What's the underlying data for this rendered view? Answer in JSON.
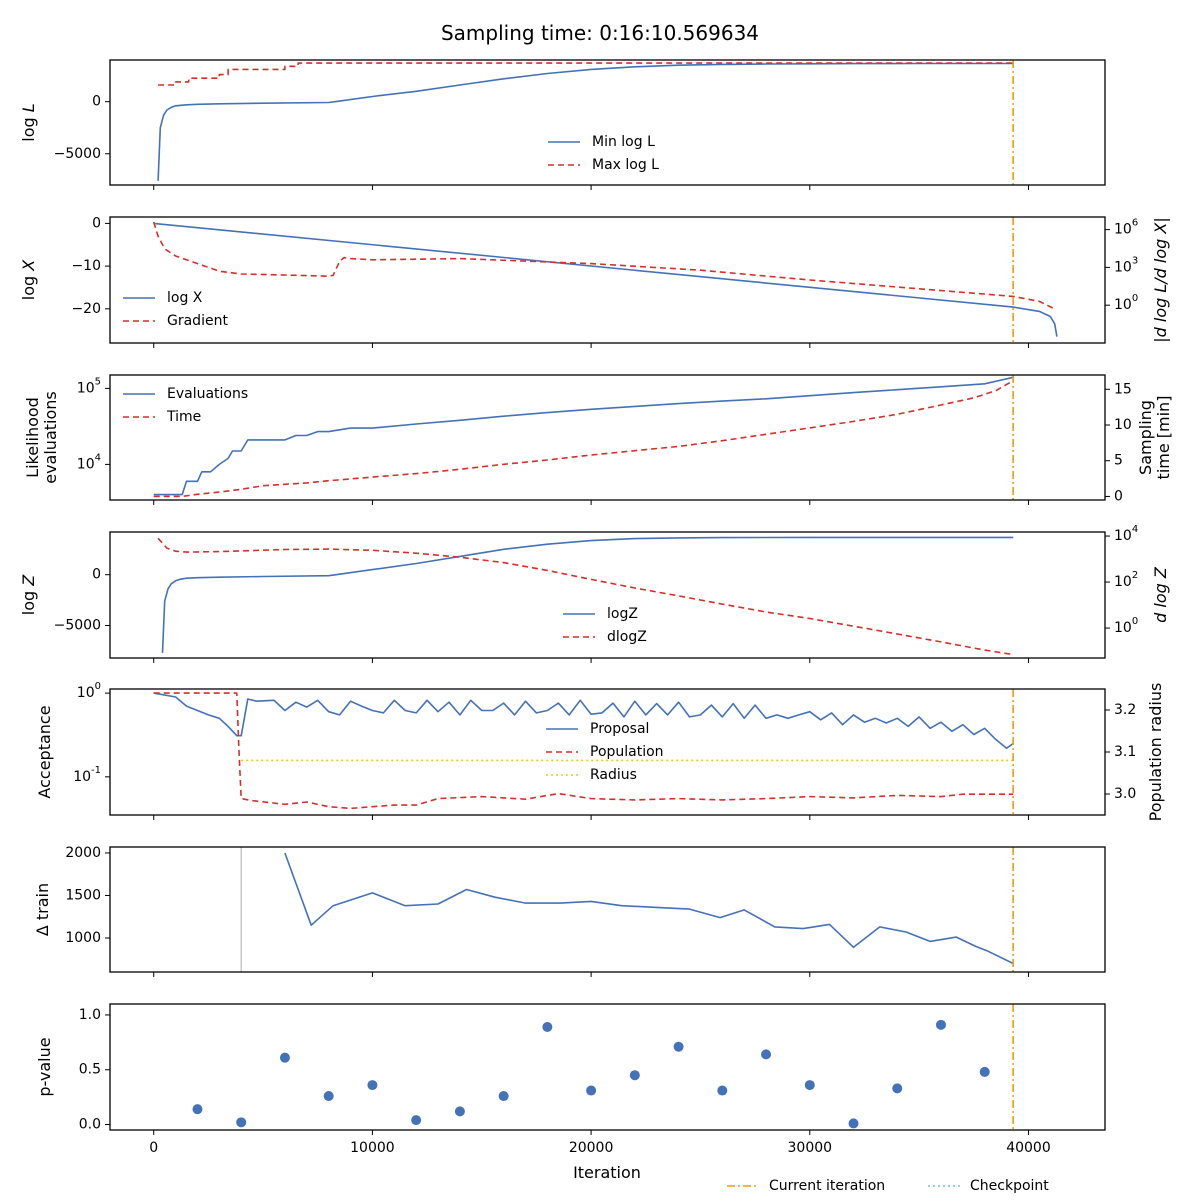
{
  "title": "Sampling time: 0:16:10.569634",
  "xlabel": "Iteration",
  "x_ticks": [
    0,
    10000,
    20000,
    30000,
    40000
  ],
  "x_tick_labels": [
    "0",
    "10000",
    "20000",
    "30000",
    "40000"
  ],
  "xlim": [
    -2000,
    43500
  ],
  "current_iteration": 39300,
  "footer_legend": [
    {
      "label": "Current iteration",
      "color": "#f29b0f",
      "style": "dashdot"
    },
    {
      "label": "Checkpoint",
      "color": "#6bc6d6",
      "style": "dotted"
    }
  ],
  "colors": {
    "blue": "#4472b8",
    "red": "#d62f2a",
    "orange": "#f29b0f",
    "gold": "#f5c518",
    "gray": "#c8c8c8"
  },
  "chart_data": [
    {
      "id": "logl",
      "type": "line",
      "ylabel": "log L",
      "ylabel_html": [
        "log ",
        "L"
      ],
      "ylim": [
        -8000,
        4000
      ],
      "yscale": "linear",
      "yticks": [
        -5000,
        0
      ],
      "ytick_labels": [
        "−5000",
        "0"
      ],
      "legend": [
        {
          "label": "Min log L",
          "series": 0
        },
        {
          "label": "Max log L",
          "series": 1
        }
      ],
      "series": [
        {
          "name": "Min log L",
          "color": "blue",
          "dash": "",
          "x": [
            200,
            300,
            450,
            600,
            800,
            1000,
            1500,
            2000,
            3000,
            5000,
            8000,
            8500,
            10000,
            12000,
            14000,
            16000,
            18000,
            20000,
            22000,
            24000,
            26000,
            28000,
            30000,
            32000,
            35000,
            39300
          ],
          "y": [
            -7600,
            -2500,
            -1300,
            -800,
            -550,
            -400,
            -300,
            -250,
            -200,
            -150,
            -80,
            50,
            500,
            1000,
            1600,
            2200,
            2700,
            3100,
            3350,
            3500,
            3580,
            3620,
            3640,
            3650,
            3660,
            3660
          ]
        },
        {
          "name": "Max log L",
          "color": "red",
          "dash": "6,4",
          "x": [
            200,
            1000,
            1000,
            1600,
            1600,
            3000,
            3000,
            3400,
            3400,
            6000,
            6000,
            6600,
            6600,
            39300
          ],
          "y": [
            1600,
            1600,
            1900,
            1900,
            2250,
            2250,
            2600,
            2600,
            3100,
            3100,
            3400,
            3400,
            3700,
            3700
          ]
        }
      ]
    },
    {
      "id": "logx",
      "type": "line",
      "ylabel": "log X",
      "ylabel_html": [
        "log ",
        "X"
      ],
      "ylim": [
        -28,
        1.5
      ],
      "yscale": "linear",
      "yticks": [
        0,
        -10,
        -20
      ],
      "ytick_labels": [
        "0",
        "−10",
        "−20"
      ],
      "y2label": "|d log L/d log X|",
      "y2lim": [
        0.001,
        10000000
      ],
      "y2scale": "log",
      "y2ticks": [
        1,
        1000,
        1000000
      ],
      "y2tick_labels": [
        "10^0",
        "10^3",
        "10^6"
      ],
      "legend": [
        {
          "label": "log X",
          "series": 0
        },
        {
          "label": "Gradient",
          "series": 1
        }
      ],
      "series": [
        {
          "name": "log X",
          "color": "blue",
          "dash": "",
          "axis": "y",
          "x": [
            0,
            39300,
            40500,
            41000,
            41200,
            41300
          ],
          "y": [
            0,
            -19.6,
            -20.6,
            -21.8,
            -23.5,
            -26.5
          ]
        },
        {
          "name": "Gradient",
          "color": "red",
          "dash": "6,4",
          "axis": "y2",
          "x": [
            0,
            200,
            500,
            1000,
            2000,
            3000,
            4000,
            6000,
            8000,
            8200,
            8500,
            8700,
            9000,
            10000,
            14000,
            20000,
            25000,
            30000,
            35000,
            39300,
            40500,
            41200
          ],
          "y": [
            4000000,
            300000,
            30000,
            8000,
            2000,
            500,
            300,
            250,
            200,
            230,
            3000,
            6000,
            5000,
            4000,
            5000,
            2000,
            600,
            100,
            20,
            5,
            2,
            0.5
          ]
        }
      ]
    },
    {
      "id": "evals",
      "type": "line",
      "ylabel": "Likelihood evaluations",
      "ylabel_lines": [
        "Likelihood",
        "evaluations"
      ],
      "ylim": [
        3400,
        150000
      ],
      "yscale": "log",
      "yticks": [
        10000,
        100000
      ],
      "ytick_labels": [
        "10^4",
        "10^5"
      ],
      "y2label": "Sampling time [min]",
      "y2label_lines": [
        "Sampling",
        "time [min]"
      ],
      "y2lim": [
        -0.5,
        17
      ],
      "y2scale": "linear",
      "y2ticks": [
        0,
        5,
        10,
        15
      ],
      "y2tick_labels": [
        "0",
        "5",
        "10",
        "15"
      ],
      "legend": [
        {
          "label": "Evaluations",
          "series": 0
        },
        {
          "label": "Time",
          "series": 1
        }
      ],
      "series": [
        {
          "name": "Evaluations",
          "color": "blue",
          "dash": "",
          "axis": "y",
          "x": [
            0,
            1300,
            1500,
            2000,
            2200,
            2600,
            3000,
            3400,
            3600,
            4000,
            4300,
            6000,
            6500,
            7000,
            7500,
            8000,
            9000,
            10000,
            12000,
            14000,
            16000,
            18000,
            20000,
            22000,
            24000,
            26000,
            28000,
            30000,
            32000,
            34000,
            36000,
            38000,
            39300
          ],
          "y": [
            4000,
            4000,
            6000,
            6000,
            8000,
            8000,
            10000,
            12000,
            15000,
            15000,
            21000,
            21000,
            24000,
            24000,
            27000,
            27000,
            30000,
            30000,
            34000,
            38000,
            43000,
            48000,
            53000,
            58000,
            63000,
            68000,
            73000,
            80000,
            88000,
            96000,
            105000,
            115000,
            140000
          ]
        },
        {
          "name": "Time",
          "color": "red",
          "dash": "6,4",
          "x": [
            0,
            1300,
            2000,
            3000,
            4000,
            5000,
            6000,
            7000,
            8000,
            10000,
            12000,
            14000,
            16000,
            18000,
            20000,
            22000,
            24000,
            26000,
            28000,
            30000,
            32000,
            34000,
            36000,
            37500,
            38500,
            39300
          ],
          "axis": "y2",
          "y": [
            0,
            0,
            0.3,
            0.6,
            1.0,
            1.5,
            1.7,
            1.9,
            2.2,
            2.7,
            3.2,
            3.8,
            4.5,
            5.1,
            5.8,
            6.4,
            7.0,
            7.8,
            8.7,
            9.6,
            10.5,
            11.5,
            12.8,
            13.8,
            14.8,
            16.2
          ]
        }
      ]
    },
    {
      "id": "logz",
      "type": "line",
      "ylabel": "log Z",
      "ylabel_html": [
        "log ",
        "Z"
      ],
      "ylim": [
        -8200,
        4200
      ],
      "yscale": "linear",
      "yticks": [
        -5000,
        0
      ],
      "ytick_labels": [
        "−5000",
        "0"
      ],
      "y2label": "d log Z",
      "y2lim": [
        0.05,
        15000
      ],
      "y2scale": "log",
      "y2ticks": [
        1,
        100,
        10000
      ],
      "y2tick_labels": [
        "10^0",
        "10^2",
        "10^4"
      ],
      "legend": [
        {
          "label": "logZ",
          "series": 0
        },
        {
          "label": "dlogZ",
          "series": 1
        }
      ],
      "series": [
        {
          "name": "logZ",
          "color": "blue",
          "dash": "",
          "x": [
            400,
            500,
            650,
            800,
            1000,
            1200,
            1500,
            2000,
            3000,
            5000,
            8000,
            8500,
            10000,
            12000,
            14000,
            16000,
            18000,
            20000,
            22000,
            24000,
            26000,
            28000,
            30000,
            32000,
            35000,
            39300
          ],
          "axis": "y",
          "y": [
            -7700,
            -2600,
            -1400,
            -900,
            -600,
            -450,
            -350,
            -300,
            -250,
            -180,
            -100,
            50,
            500,
            1100,
            1800,
            2500,
            3000,
            3350,
            3550,
            3620,
            3650,
            3660,
            3665,
            3670,
            3670,
            3670
          ]
        },
        {
          "name": "dlogZ",
          "color": "red",
          "dash": "6,4",
          "x": [
            200,
            600,
            1000,
            1500,
            3000,
            6000,
            8000,
            10000,
            12000,
            14000,
            16000,
            18000,
            20000,
            22000,
            24000,
            26000,
            28000,
            30000,
            32000,
            34000,
            36000,
            38000,
            39300
          ],
          "axis": "y2",
          "y": [
            8000,
            3000,
            2200,
            2000,
            2100,
            2600,
            2700,
            2400,
            1800,
            1200,
            700,
            320,
            130,
            55,
            25,
            11,
            5,
            2.6,
            1.2,
            0.55,
            0.25,
            0.11,
            0.07
          ]
        }
      ]
    },
    {
      "id": "accept",
      "type": "line",
      "ylabel": "Acceptance",
      "ylim": [
        0.035,
        1.12
      ],
      "yscale": "log",
      "yticks": [
        0.1,
        1.0
      ],
      "ytick_labels": [
        "10^-1",
        "10^0"
      ],
      "y2label": "Population radius",
      "y2lim": [
        2.95,
        3.25
      ],
      "y2scale": "linear",
      "y2ticks": [
        3.0,
        3.1,
        3.2
      ],
      "y2tick_labels": [
        "3.0",
        "3.1",
        "3.2"
      ],
      "legend": [
        {
          "label": "Proposal",
          "series": 0
        },
        {
          "label": "Population",
          "series": 1
        },
        {
          "label": "Radius",
          "series": 2
        }
      ],
      "series": [
        {
          "name": "Proposal",
          "color": "blue",
          "dash": "",
          "axis": "y",
          "x": [
            0,
            1000,
            1500,
            2000,
            2500,
            3000,
            3400,
            3800,
            4000,
            4300,
            4700,
            5500,
            6000,
            6500,
            7000,
            7500,
            8000,
            8500,
            9000,
            9500,
            10000,
            10500,
            11000,
            11500,
            12000,
            12500,
            13000,
            13500,
            14000,
            14500,
            15000,
            15500,
            16000,
            16500,
            17000,
            17500,
            18000,
            18500,
            19000,
            19500,
            20000,
            20500,
            21000,
            21500,
            22000,
            22500,
            23000,
            23500,
            24000,
            24500,
            25000,
            25500,
            26000,
            26500,
            27000,
            27500,
            28000,
            28500,
            29000,
            29500,
            30000,
            30500,
            31000,
            31500,
            32000,
            32500,
            33000,
            33500,
            34000,
            34500,
            35000,
            35500,
            36000,
            36500,
            37000,
            37500,
            38000,
            38500,
            39000,
            39300
          ],
          "y": [
            1.0,
            0.9,
            0.7,
            0.62,
            0.55,
            0.5,
            0.4,
            0.31,
            0.31,
            0.85,
            0.8,
            0.82,
            0.62,
            0.78,
            0.68,
            0.82,
            0.6,
            0.55,
            0.8,
            0.7,
            0.62,
            0.58,
            0.82,
            0.62,
            0.58,
            0.82,
            0.6,
            0.78,
            0.55,
            0.82,
            0.62,
            0.62,
            0.76,
            0.55,
            0.8,
            0.58,
            0.62,
            0.76,
            0.55,
            0.82,
            0.56,
            0.58,
            0.76,
            0.52,
            0.8,
            0.55,
            0.75,
            0.55,
            0.78,
            0.52,
            0.55,
            0.72,
            0.52,
            0.75,
            0.5,
            0.72,
            0.5,
            0.55,
            0.5,
            0.55,
            0.6,
            0.48,
            0.58,
            0.42,
            0.55,
            0.45,
            0.5,
            0.44,
            0.5,
            0.4,
            0.52,
            0.38,
            0.45,
            0.35,
            0.42,
            0.32,
            0.38,
            0.28,
            0.22,
            0.25
          ]
        },
        {
          "name": "Population",
          "color": "red",
          "dash": "6,4",
          "axis": "y",
          "x": [
            0,
            3800,
            3900,
            4000,
            4500,
            6000,
            7000,
            8000,
            9000,
            10000,
            11000,
            12000,
            13000,
            15000,
            17000,
            18500,
            20000,
            22000,
            24000,
            26000,
            28000,
            30000,
            32000,
            34000,
            36000,
            37000,
            39300
          ],
          "y": [
            1.0,
            1.0,
            0.2,
            0.055,
            0.052,
            0.047,
            0.05,
            0.044,
            0.042,
            0.044,
            0.046,
            0.046,
            0.055,
            0.058,
            0.054,
            0.063,
            0.055,
            0.053,
            0.055,
            0.053,
            0.055,
            0.058,
            0.056,
            0.06,
            0.058,
            0.062,
            0.062
          ]
        },
        {
          "name": "Radius",
          "color": "gold",
          "dash": "2,3",
          "axis": "y2",
          "x": [
            4000,
            39300
          ],
          "y": [
            3.08,
            3.08
          ]
        }
      ]
    },
    {
      "id": "dtrain",
      "type": "line",
      "ylabel": "Δ train",
      "ylim": [
        600,
        2070
      ],
      "yscale": "linear",
      "yticks": [
        1000,
        1500,
        2000
      ],
      "ytick_labels": [
        "1000",
        "1500",
        "2000"
      ],
      "checkpoint_line_x": 4000,
      "legend": [],
      "series": [
        {
          "name": "Δ train",
          "color": "blue",
          "dash": "",
          "axis": "y",
          "x": [
            6000,
            7200,
            8200,
            10000,
            11500,
            13000,
            14300,
            15600,
            17000,
            18600,
            20000,
            21400,
            23000,
            24500,
            25900,
            27000,
            28400,
            29700,
            30900,
            32000,
            33200,
            34400,
            35500,
            36700,
            37600,
            38100,
            39300
          ],
          "y": [
            2000,
            1150,
            1380,
            1530,
            1380,
            1400,
            1570,
            1480,
            1410,
            1410,
            1430,
            1380,
            1360,
            1340,
            1240,
            1330,
            1130,
            1110,
            1160,
            890,
            1130,
            1070,
            960,
            1010,
            900,
            850,
            700
          ]
        }
      ]
    },
    {
      "id": "pvalue",
      "type": "scatter",
      "ylabel": "p-value",
      "ylim": [
        -0.05,
        1.1
      ],
      "yscale": "linear",
      "yticks": [
        0.0,
        0.5,
        1.0
      ],
      "ytick_labels": [
        "0.0",
        "0.5",
        "1.0"
      ],
      "legend": [],
      "series": [
        {
          "name": "p-value",
          "color": "blue",
          "x": [
            2000,
            4000,
            6000,
            8000,
            10000,
            12000,
            14000,
            16000,
            18000,
            20000,
            22000,
            24000,
            26000,
            28000,
            30000,
            32000,
            34000,
            36000,
            38000
          ],
          "y": [
            0.14,
            0.02,
            0.61,
            0.26,
            0.36,
            0.04,
            0.12,
            0.26,
            0.89,
            0.31,
            0.45,
            0.71,
            0.31,
            0.64,
            0.36,
            0.01,
            0.33,
            0.91,
            0.48
          ]
        }
      ]
    }
  ]
}
